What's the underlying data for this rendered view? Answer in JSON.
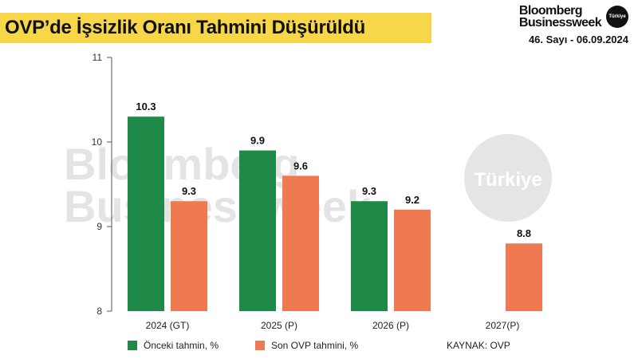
{
  "header": {
    "title": "OVP’de İşsizlik Oranı Tahmini Düşürüldü",
    "brand_line1": "Bloomberg",
    "brand_line2": "Businessweek",
    "brand_badge": "Türkiye",
    "issue": "46. Sayı - 06.09.2024"
  },
  "watermark": {
    "line1": "Bloomberg",
    "line2": "Businessweek",
    "badge": "Türkiye"
  },
  "colors": {
    "previous": "#1f8a47",
    "current": "#ef7a52",
    "title_bg": "#f7d64a",
    "axis": "#555555"
  },
  "legend": {
    "previous_label": "Önceki tahmin, %",
    "current_label": "Son OVP tahmini, %",
    "source": "KAYNAK: OVP"
  },
  "chart_data": {
    "type": "bar",
    "categories": [
      "2024 (GT)",
      "2025 (P)",
      "2026 (P)",
      "2027(P)"
    ],
    "series": [
      {
        "name": "Önceki tahmin, %",
        "values": [
          10.3,
          9.9,
          9.3,
          null
        ],
        "labels": [
          "10.3",
          "9.9",
          "9.3",
          ""
        ]
      },
      {
        "name": "Son OVP tahmini, %",
        "values": [
          9.3,
          9.6,
          9.2,
          8.8
        ],
        "labels": [
          "9.3",
          "9.6",
          "9.2",
          "8.8"
        ]
      }
    ],
    "ylim": [
      8,
      11
    ],
    "yticks": [
      8,
      9,
      10,
      11
    ],
    "ytick_labels": [
      "8",
      "9",
      "10",
      "11"
    ],
    "grid": false,
    "legend": "bottom"
  }
}
